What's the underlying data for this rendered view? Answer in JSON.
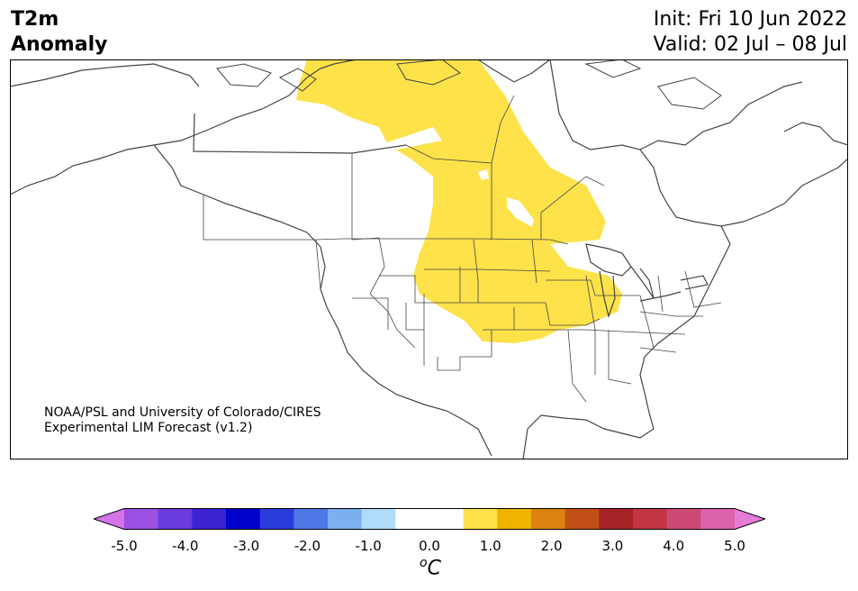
{
  "title": {
    "variable": "T2m",
    "subtitle": "Anomaly",
    "init": "Init: Fri 10 Jun 2022",
    "valid": "Valid: 02 Jul – 08 Jul"
  },
  "credit": {
    "line1": "NOAA/PSL and University of Colorado/CIRES",
    "line2": "Experimental LIM Forecast (v1.2)"
  },
  "colorbar": {
    "unit_base": "C",
    "unit_sup": "o",
    "colors": [
      "#d573ea",
      "#9a50e0",
      "#6a3be0",
      "#3a24d4",
      "#0000cc",
      "#2a3ddb",
      "#4e78e5",
      "#7ab0ef",
      "#b0dcf9",
      "#ffffff",
      "#ffffff",
      "#fde24a",
      "#f0b400",
      "#dc8211",
      "#c24f16",
      "#a52325",
      "#c23543",
      "#cd4a77",
      "#dc62ab",
      "#e57cd8"
    ],
    "tick_labels": [
      "-5.0",
      "-4.0",
      "-3.0",
      "-2.0",
      "-1.0",
      "0.0",
      "1.0",
      "2.0",
      "3.0",
      "4.0",
      "5.0"
    ]
  },
  "map_layers": {
    "anomaly_color": "#fde24a",
    "outline_color": "#444444"
  }
}
